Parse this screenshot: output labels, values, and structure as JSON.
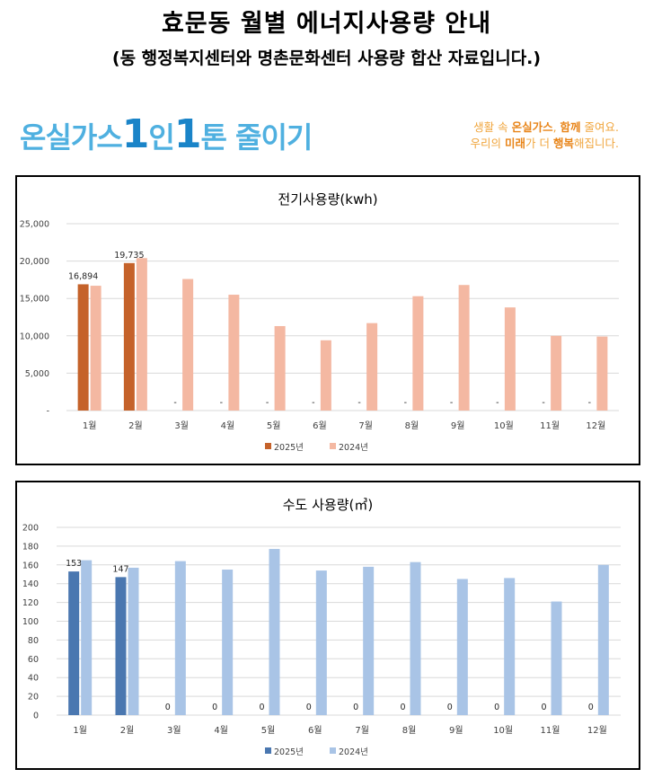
{
  "header": {
    "title": "효문동 월별 에너지사용량 안내",
    "subtitle": "(동 행정복지센터와 명촌문화센터 사용량 합산 자료입니다.)"
  },
  "banner": {
    "logo_part1": "온실가스",
    "logo_num1": "1",
    "logo_part2": "인",
    "logo_num2": "1",
    "logo_part3": "톤 줄이기",
    "slogan_line1_a": "생활 속 ",
    "slogan_line1_b": "온실가스",
    "slogan_line1_c": ", ",
    "slogan_line1_d": "함께",
    "slogan_line1_e": " 줄여요.",
    "slogan_line2_a": "우리의 ",
    "slogan_line2_b": "미래",
    "slogan_line2_c": "가 더 ",
    "slogan_line2_d": "행복",
    "slogan_line2_e": "해집니다.",
    "accent_color": "#f0a53c",
    "logo_color": "#4fb0e0"
  },
  "chart_data": [
    {
      "type": "bar",
      "title": "전기사용량(kwh)",
      "categories": [
        "1월",
        "2월",
        "3월",
        "4월",
        "5월",
        "6월",
        "7월",
        "8월",
        "9월",
        "10월",
        "11월",
        "12월"
      ],
      "ylim": [
        0,
        25000
      ],
      "yticks": [
        "-",
        "5,000",
        "10,000",
        "15,000",
        "20,000",
        "25,000"
      ],
      "ytick_values": [
        0,
        5000,
        10000,
        15000,
        20000,
        25000
      ],
      "grid": true,
      "legend": "bottom",
      "series": [
        {
          "name": "2025년",
          "color": "#c5622a",
          "values": [
            16894,
            19735,
            0,
            0,
            0,
            0,
            0,
            0,
            0,
            0,
            0,
            0
          ],
          "labels": [
            "16,894",
            "19,735",
            "-",
            "-",
            "-",
            "-",
            "-",
            "-",
            "-",
            "-",
            "-",
            "-"
          ]
        },
        {
          "name": "2024년",
          "color": "#f4b8a2",
          "values": [
            16700,
            20400,
            17600,
            15500,
            11300,
            9400,
            11700,
            15300,
            16800,
            13800,
            10000,
            9900
          ]
        }
      ]
    },
    {
      "type": "bar",
      "title": "수도 사용량(㎥)",
      "categories": [
        "1월",
        "2월",
        "3월",
        "4월",
        "5월",
        "6월",
        "7월",
        "8월",
        "9월",
        "10월",
        "11월",
        "12월"
      ],
      "ylim": [
        0,
        200
      ],
      "yticks": [
        "0",
        "20",
        "40",
        "60",
        "80",
        "100",
        "120",
        "140",
        "160",
        "180",
        "200"
      ],
      "ytick_values": [
        0,
        20,
        40,
        60,
        80,
        100,
        120,
        140,
        160,
        180,
        200
      ],
      "grid": true,
      "legend": "bottom",
      "series": [
        {
          "name": "2025년",
          "color": "#4a77b0",
          "values": [
            153,
            147,
            0,
            0,
            0,
            0,
            0,
            0,
            0,
            0,
            0,
            0
          ],
          "labels": [
            "153",
            "147",
            "0",
            "0",
            "0",
            "0",
            "0",
            "0",
            "0",
            "0",
            "0",
            "0"
          ]
        },
        {
          "name": "2024년",
          "color": "#a9c4e6",
          "values": [
            165,
            157,
            164,
            155,
            177,
            154,
            158,
            163,
            145,
            146,
            121,
            160
          ]
        }
      ]
    }
  ]
}
